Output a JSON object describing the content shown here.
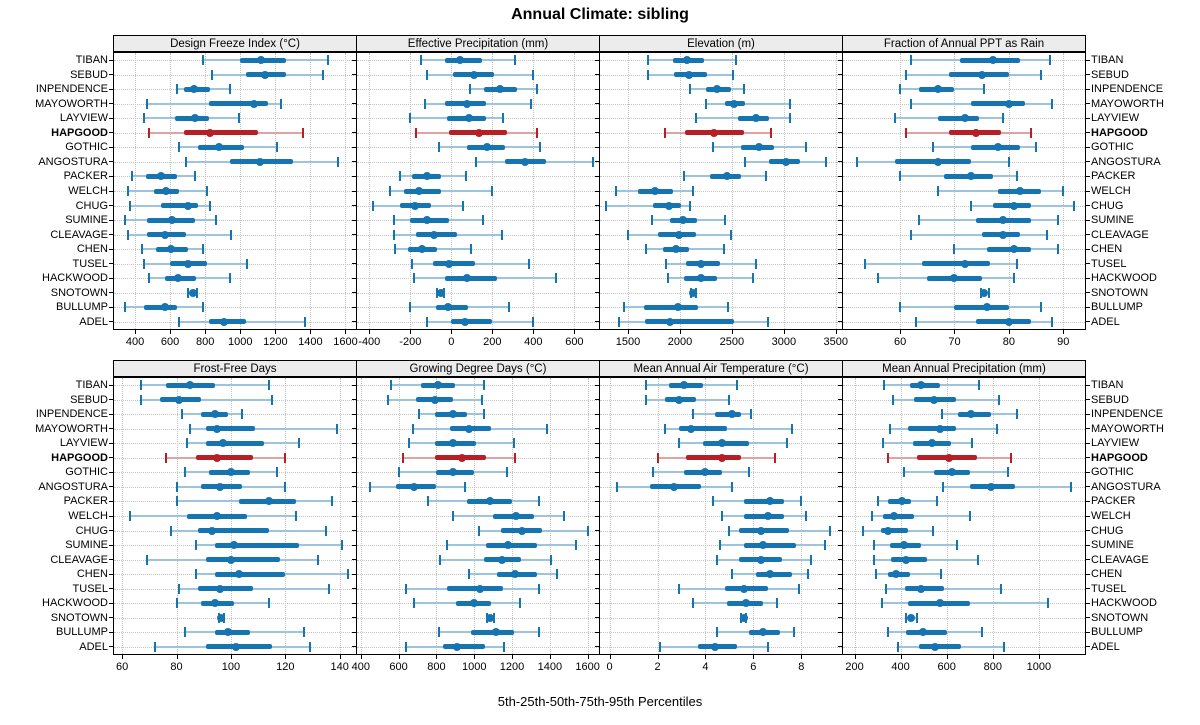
{
  "title": "Annual Climate: sibling",
  "caption": "5th-25th-50th-75th-95th Percentiles",
  "colors": {
    "normal": "#1674b1",
    "normal_light": "#9cc4de",
    "highlight": "#b42025",
    "highlight_light": "#e2a2a2",
    "strip_bg": "#ececec",
    "grid": "#c3c3c3"
  },
  "chart_data": {
    "type": "dot-interval",
    "note": "Each row shows 5th-25th-50th-75th-95th percentiles; dot = median",
    "percentiles": [
      5,
      25,
      50,
      75,
      95
    ],
    "legend_caption": "5th-25th-50th-75th-95th Percentiles",
    "highlighted_location": "HAPGOOD",
    "locations": [
      "TIBAN",
      "SEBUD",
      "INPENDENCE",
      "MAYOWORTH",
      "LAYVIEW",
      "HAPGOOD",
      "GOTHIC",
      "ANGOSTURA",
      "PACKER",
      "WELCH",
      "CHUG",
      "SUMINE",
      "CLEAVAGE",
      "CHEN",
      "TUSEL",
      "HACKWOOD",
      "SNOTOWN",
      "BULLUMP",
      "ADEL"
    ],
    "panels": [
      {
        "title": "Design Freeze Index (°C)",
        "axis": {
          "min": 280,
          "max": 1660,
          "ticks": [
            400,
            600,
            800,
            1000,
            1200,
            1400,
            1600
          ]
        },
        "values": [
          [
            790,
            1000,
            1120,
            1260,
            1500
          ],
          [
            840,
            1030,
            1140,
            1260,
            1470
          ],
          [
            640,
            680,
            735,
            830,
            940
          ],
          [
            470,
            820,
            1080,
            1160,
            1230
          ],
          [
            450,
            630,
            740,
            820,
            990
          ],
          [
            480,
            680,
            830,
            1100,
            1360
          ],
          [
            650,
            760,
            880,
            1020,
            1210
          ],
          [
            690,
            940,
            1110,
            1300,
            1560
          ],
          [
            380,
            460,
            550,
            640,
            740
          ],
          [
            360,
            510,
            575,
            650,
            810
          ],
          [
            370,
            550,
            700,
            760,
            830
          ],
          [
            340,
            470,
            610,
            740,
            860
          ],
          [
            360,
            470,
            570,
            690,
            950
          ],
          [
            440,
            520,
            605,
            700,
            790
          ],
          [
            450,
            600,
            700,
            810,
            1040
          ],
          [
            480,
            570,
            645,
            750,
            940
          ],
          [
            700,
            715,
            730,
            745,
            755
          ],
          [
            340,
            450,
            570,
            640,
            790
          ],
          [
            650,
            820,
            905,
            1030,
            1370
          ]
        ]
      },
      {
        "title": "Effective Precipitation (mm)",
        "axis": {
          "min": -460,
          "max": 720,
          "ticks": [
            -400,
            -200,
            0,
            200,
            400,
            600
          ]
        },
        "values": [
          [
            -150,
            -30,
            40,
            150,
            310
          ],
          [
            -120,
            10,
            110,
            210,
            400
          ],
          [
            90,
            160,
            235,
            320,
            420
          ],
          [
            -130,
            -30,
            75,
            170,
            390
          ],
          [
            -200,
            -20,
            85,
            170,
            250
          ],
          [
            -170,
            -10,
            135,
            270,
            420
          ],
          [
            -60,
            75,
            175,
            260,
            430
          ],
          [
            120,
            260,
            360,
            460,
            690
          ],
          [
            -250,
            -190,
            -120,
            -50,
            70
          ],
          [
            -300,
            -230,
            -160,
            -50,
            200
          ],
          [
            -380,
            -250,
            -175,
            -100,
            55
          ],
          [
            -280,
            -200,
            -120,
            -10,
            155
          ],
          [
            -280,
            -170,
            -85,
            30,
            245
          ],
          [
            -275,
            -210,
            -145,
            -70,
            95
          ],
          [
            -190,
            -90,
            -10,
            115,
            380
          ],
          [
            -180,
            -30,
            75,
            225,
            510
          ],
          [
            -70,
            -60,
            -50,
            -42,
            -35
          ],
          [
            -200,
            -75,
            -15,
            80,
            280
          ],
          [
            -120,
            0,
            65,
            200,
            400
          ]
        ]
      },
      {
        "title": "Elevation (m)",
        "axis": {
          "min": 1230,
          "max": 3560,
          "ticks": [
            1500,
            2000,
            2500,
            3000,
            3500
          ]
        },
        "values": [
          [
            1690,
            1930,
            2070,
            2230,
            2540
          ],
          [
            1690,
            1940,
            2090,
            2260,
            2510
          ],
          [
            2100,
            2250,
            2360,
            2490,
            2620
          ],
          [
            2250,
            2430,
            2520,
            2630,
            3060
          ],
          [
            2150,
            2560,
            2730,
            2860,
            3060
          ],
          [
            1860,
            2050,
            2330,
            2620,
            2880
          ],
          [
            2320,
            2590,
            2760,
            2910,
            3210
          ],
          [
            2630,
            2860,
            3020,
            3160,
            3410
          ],
          [
            2040,
            2290,
            2450,
            2590,
            2830
          ],
          [
            1380,
            1600,
            1760,
            1930,
            2130
          ],
          [
            1290,
            1740,
            1890,
            2010,
            2100
          ],
          [
            1730,
            1900,
            2030,
            2160,
            2430
          ],
          [
            1500,
            1790,
            1990,
            2150,
            2490
          ],
          [
            1670,
            1840,
            1960,
            2090,
            2420
          ],
          [
            1870,
            2060,
            2200,
            2390,
            2730
          ],
          [
            1880,
            2040,
            2200,
            2360,
            2700
          ],
          [
            2110,
            2120,
            2130,
            2140,
            2150
          ],
          [
            1460,
            1650,
            1980,
            2170,
            2460
          ],
          [
            1410,
            1660,
            1900,
            2520,
            2850
          ]
        ]
      },
      {
        "title": "Fraction of Annual PPT as Rain",
        "axis": {
          "min": 49.5,
          "max": 94,
          "ticks": [
            60,
            70,
            80,
            90
          ]
        },
        "values": [
          [
            62,
            71,
            77,
            82,
            87.5
          ],
          [
            61,
            69,
            75,
            80,
            86
          ],
          [
            60,
            63.5,
            67,
            70,
            75.5
          ],
          [
            62,
            73,
            80,
            83,
            88
          ],
          [
            59,
            67,
            72,
            74.5,
            79
          ],
          [
            61,
            69,
            74,
            78.5,
            84
          ],
          [
            66,
            73,
            78,
            82,
            85
          ],
          [
            52,
            59,
            67,
            73,
            80
          ],
          [
            60,
            68,
            73,
            77,
            81.5
          ],
          [
            67,
            78,
            82,
            86,
            90
          ],
          [
            73,
            77,
            81,
            84,
            92
          ],
          [
            63.5,
            74,
            79,
            84,
            89
          ],
          [
            62,
            75,
            79,
            82,
            87
          ],
          [
            70,
            76,
            81,
            84,
            89
          ],
          [
            53.5,
            64,
            72,
            76.5,
            81.5
          ],
          [
            56,
            65,
            70,
            75,
            81
          ],
          [
            74.8,
            75.2,
            75.5,
            75.9,
            76.3
          ],
          [
            60,
            70,
            76,
            80,
            86
          ],
          [
            63,
            74,
            80,
            84,
            88
          ]
        ]
      },
      {
        "title": "Frost-Free Days",
        "axis": {
          "min": 57,
          "max": 146,
          "ticks": [
            60,
            80,
            100,
            120,
            140
          ]
        },
        "values": [
          [
            67,
            76,
            85,
            94,
            114
          ],
          [
            67,
            74,
            81,
            89,
            115
          ],
          [
            82,
            89,
            94,
            99,
            104
          ],
          [
            85,
            91,
            95,
            109,
            139
          ],
          [
            84,
            91,
            97,
            112,
            125
          ],
          [
            76,
            87,
            95,
            108,
            120
          ],
          [
            83,
            92,
            100,
            107,
            117
          ],
          [
            80,
            89,
            96,
            104,
            120
          ],
          [
            80,
            103,
            114,
            124,
            137
          ],
          [
            63,
            84,
            95,
            106,
            124
          ],
          [
            78,
            88,
            93,
            114,
            135
          ],
          [
            87,
            94,
            101,
            125,
            141
          ],
          [
            69,
            91,
            100,
            118,
            132
          ],
          [
            87,
            94,
            103,
            120,
            143
          ],
          [
            81,
            88,
            96,
            108,
            136
          ],
          [
            80,
            89,
            94,
            101,
            114
          ],
          [
            95.5,
            96,
            96.5,
            97,
            97.5
          ],
          [
            83,
            94,
            99,
            107,
            127
          ],
          [
            72,
            91,
            102,
            115,
            129
          ]
        ]
      },
      {
        "title": "Growing Degree Days (°C)",
        "axis": {
          "min": 380,
          "max": 1660,
          "ticks": [
            400,
            600,
            800,
            1000,
            1200,
            1400,
            1600
          ]
        },
        "values": [
          [
            560,
            720,
            810,
            900,
            1050
          ],
          [
            545,
            690,
            795,
            890,
            1040
          ],
          [
            710,
            790,
            890,
            960,
            1050
          ],
          [
            675,
            870,
            975,
            1090,
            1385
          ],
          [
            655,
            790,
            890,
            1010,
            1210
          ],
          [
            625,
            790,
            935,
            1060,
            1215
          ],
          [
            600,
            800,
            890,
            1000,
            1175
          ],
          [
            450,
            585,
            680,
            800,
            950
          ],
          [
            755,
            960,
            1085,
            1200,
            1345
          ],
          [
            890,
            1100,
            1220,
            1315,
            1475
          ],
          [
            1025,
            1140,
            1255,
            1360,
            1600
          ],
          [
            855,
            1060,
            1180,
            1330,
            1540
          ],
          [
            820,
            1050,
            1145,
            1250,
            1405
          ],
          [
            975,
            1120,
            1215,
            1330,
            1440
          ],
          [
            640,
            855,
            1030,
            1150,
            1345
          ],
          [
            680,
            905,
            1000,
            1090,
            1240
          ],
          [
            1065,
            1075,
            1085,
            1095,
            1105
          ],
          [
            815,
            985,
            1115,
            1210,
            1340
          ],
          [
            640,
            835,
            910,
            1055,
            1160
          ]
        ]
      },
      {
        "title": "Mean Annual Air Temperature (°C)",
        "axis": {
          "min": -0.4,
          "max": 9.7,
          "ticks": [
            0,
            2,
            4,
            6,
            8
          ]
        },
        "values": [
          [
            1.5,
            2.5,
            3.1,
            3.9,
            5.3
          ],
          [
            1.5,
            2.3,
            2.9,
            3.6,
            5.0
          ],
          [
            3.5,
            4.4,
            5.1,
            5.5,
            5.9
          ],
          [
            2.3,
            2.9,
            3.4,
            4.9,
            7.6
          ],
          [
            2.9,
            3.9,
            4.7,
            5.8,
            7.4
          ],
          [
            2.0,
            3.2,
            4.7,
            5.5,
            6.9
          ],
          [
            1.8,
            3.1,
            4.0,
            4.7,
            5.8
          ],
          [
            0.3,
            1.7,
            2.7,
            3.8,
            5.1
          ],
          [
            4.3,
            5.6,
            6.7,
            7.3,
            8.0
          ],
          [
            4.7,
            5.6,
            6.6,
            7.3,
            8.2
          ],
          [
            5.0,
            5.4,
            6.3,
            7.5,
            9.2
          ],
          [
            4.6,
            5.6,
            6.4,
            7.8,
            9.0
          ],
          [
            4.5,
            5.4,
            6.3,
            7.2,
            8.4
          ],
          [
            5.1,
            6.1,
            6.7,
            7.6,
            8.3
          ],
          [
            2.9,
            4.8,
            5.6,
            6.6,
            7.9
          ],
          [
            3.5,
            4.9,
            5.7,
            6.4,
            7.0
          ],
          [
            5.5,
            5.55,
            5.6,
            5.65,
            5.7
          ],
          [
            4.5,
            5.8,
            6.4,
            7.1,
            7.7
          ],
          [
            2.1,
            3.7,
            4.4,
            5.3,
            6.6
          ]
        ]
      },
      {
        "title": "Mean Annual Precipitation (mm)",
        "axis": {
          "min": 150,
          "max": 1200,
          "ticks": [
            200,
            400,
            600,
            800,
            1000
          ]
        },
        "values": [
          [
            330,
            440,
            490,
            570,
            740
          ],
          [
            365,
            460,
            545,
            640,
            825
          ],
          [
            580,
            650,
            705,
            790,
            905
          ],
          [
            355,
            430,
            570,
            640,
            820
          ],
          [
            325,
            455,
            535,
            620,
            710
          ],
          [
            345,
            470,
            610,
            730,
            880
          ],
          [
            415,
            545,
            625,
            700,
            865
          ],
          [
            585,
            700,
            790,
            895,
            1140
          ],
          [
            300,
            345,
            405,
            445,
            560
          ],
          [
            275,
            325,
            370,
            460,
            700
          ],
          [
            235,
            315,
            345,
            430,
            540
          ],
          [
            285,
            355,
            415,
            490,
            645
          ],
          [
            285,
            360,
            425,
            515,
            735
          ],
          [
            295,
            345,
            380,
            440,
            575
          ],
          [
            335,
            420,
            490,
            590,
            835
          ],
          [
            320,
            430,
            570,
            700,
            1040
          ],
          [
            425,
            435,
            445,
            460,
            470
          ],
          [
            345,
            425,
            495,
            600,
            755
          ],
          [
            390,
            480,
            550,
            660,
            850
          ]
        ]
      }
    ]
  }
}
